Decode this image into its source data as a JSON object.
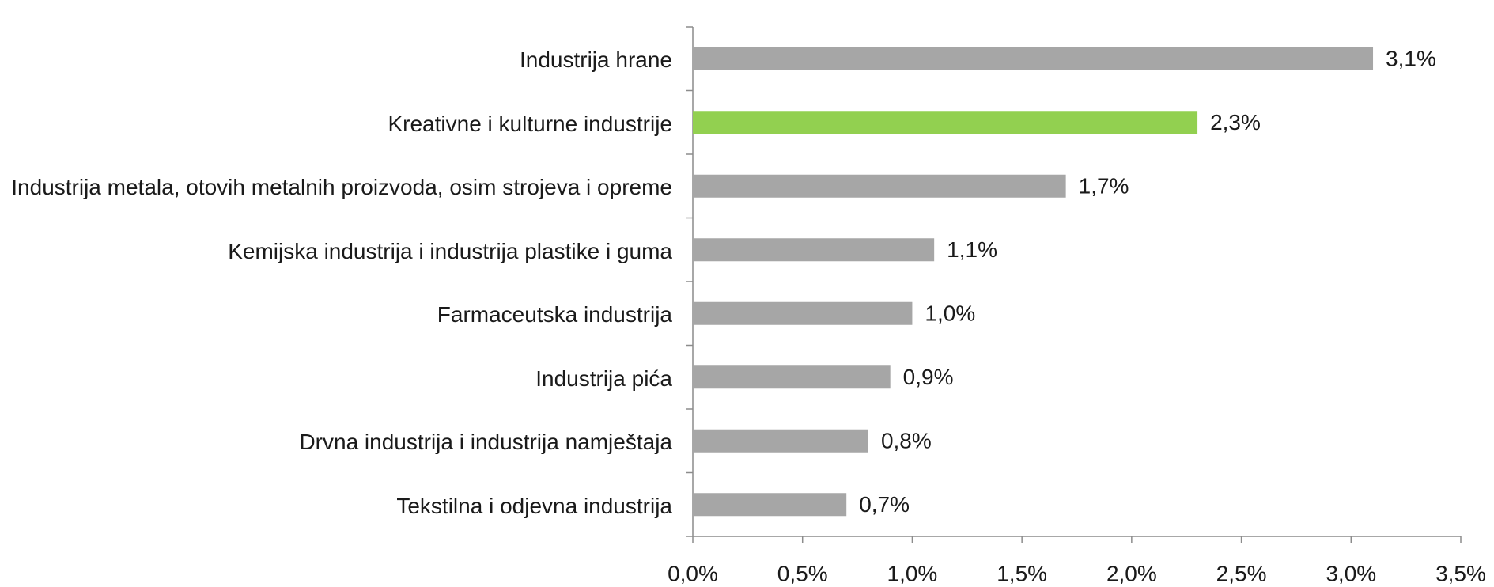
{
  "chart_data": {
    "type": "bar",
    "orientation": "horizontal",
    "categories": [
      "Industrija hrane",
      "Kreativne i kulturne industrije",
      "Industrija metala, otovih metalnih proizvoda, osim strojeva i opreme",
      "Kemijska industrija i industrija plastike i guma",
      "Farmaceutska industrija",
      "Industrija pića",
      "Drvna industrija i industrija namještaja",
      "Tekstilna i odjevna industrija"
    ],
    "values": [
      3.1,
      2.3,
      1.7,
      1.1,
      1.0,
      0.9,
      0.8,
      0.7
    ],
    "value_labels": [
      "3,1%",
      "2,3%",
      "1,7%",
      "1,1%",
      "1,0%",
      "0,9%",
      "0,8%",
      "0,7%"
    ],
    "colors": [
      "#a6a6a6",
      "#92d050",
      "#a6a6a6",
      "#a6a6a6",
      "#a6a6a6",
      "#a6a6a6",
      "#a6a6a6",
      "#a6a6a6"
    ],
    "xlim": [
      0,
      3.5
    ],
    "xticks": [
      {
        "value": 0,
        "label": "0,0%"
      },
      {
        "value": 0.5,
        "label": "0,5%"
      },
      {
        "value": 1,
        "label": "1,0%"
      },
      {
        "value": 1.5,
        "label": "1,5%"
      },
      {
        "value": 2,
        "label": "2,0%"
      },
      {
        "value": 2.5,
        "label": "2,5%"
      },
      {
        "value": 3,
        "label": "3,0%"
      },
      {
        "value": 3.5,
        "label": "3,5%"
      }
    ],
    "grid": false
  }
}
